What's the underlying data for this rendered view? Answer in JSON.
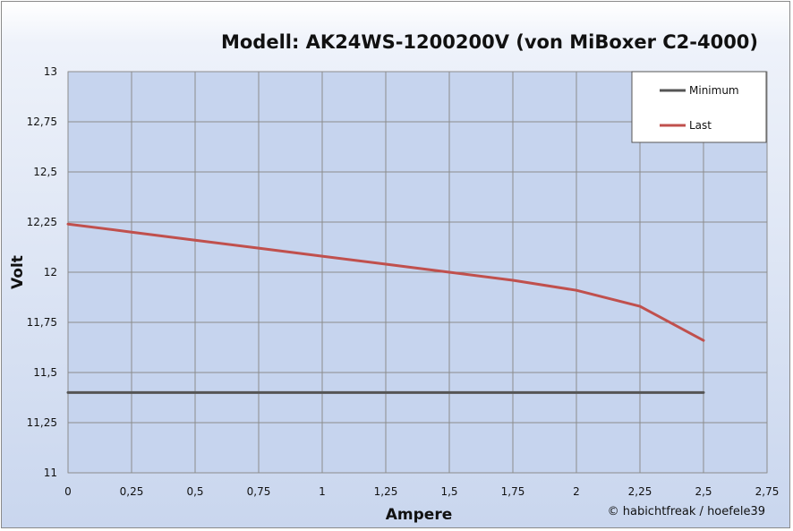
{
  "chart_data": {
    "type": "line",
    "title": "Modell: AK24WS-1200200V  (von MiBoxer C2-4000)",
    "xlabel": "Ampere",
    "ylabel": "Volt",
    "xlim": [
      0,
      2.75
    ],
    "ylim": [
      11,
      13
    ],
    "x_ticks": [
      "0",
      "0,25",
      "0,5",
      "0,75",
      "1",
      "1,25",
      "1,5",
      "1,75",
      "2",
      "2,25",
      "2,5",
      "2,75"
    ],
    "y_ticks": [
      "11",
      "11,25",
      "11,5",
      "11,75",
      "12",
      "12,25",
      "12,5",
      "12,75",
      "13"
    ],
    "grid": true,
    "legend_position": "top-right",
    "series": [
      {
        "name": "Minimum",
        "color": "#555555",
        "x": [
          0,
          2.5
        ],
        "y": [
          11.4,
          11.4
        ]
      },
      {
        "name": "Last",
        "color": "#c0504d",
        "x": [
          0,
          0.25,
          0.5,
          0.75,
          1,
          1.25,
          1.5,
          1.75,
          2,
          2.25,
          2.5
        ],
        "y": [
          12.24,
          12.2,
          12.16,
          12.12,
          12.08,
          12.04,
          12.0,
          11.96,
          11.91,
          11.83,
          11.66
        ]
      }
    ],
    "annotation": "© habichtfreak  / hoefele39"
  }
}
